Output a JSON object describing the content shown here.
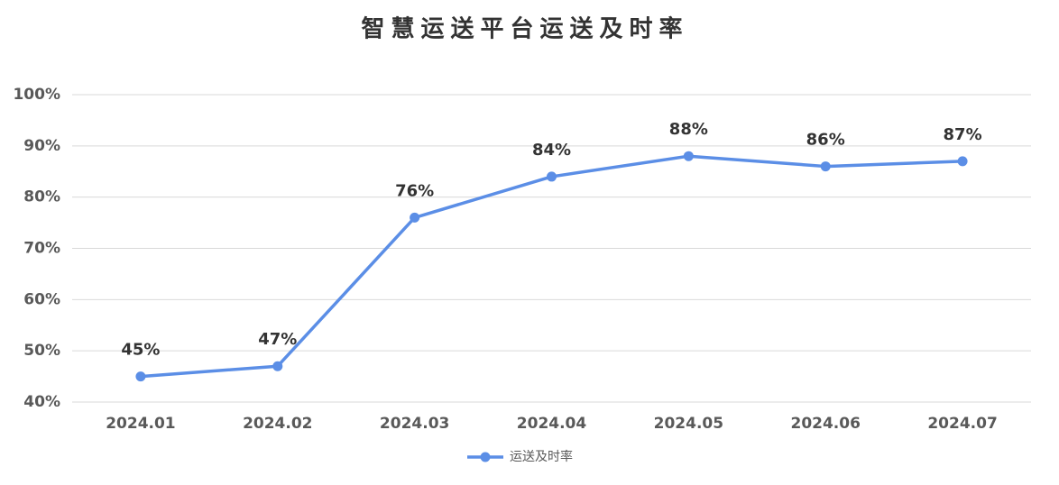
{
  "chart_data": {
    "type": "line",
    "title": "智慧运送平台运送及时率",
    "categories": [
      "2024.01",
      "2024.02",
      "2024.03",
      "2024.04",
      "2024.05",
      "2024.06",
      "2024.07"
    ],
    "series": [
      {
        "name": "运送及时率",
        "color": "#5b8ee6",
        "values": [
          45,
          47,
          76,
          84,
          88,
          86,
          87
        ],
        "value_labels": [
          "45%",
          "47%",
          "76%",
          "84%",
          "88%",
          "86%",
          "87%"
        ]
      }
    ],
    "ylim": [
      40,
      100
    ],
    "yticks": [
      {
        "value": 40,
        "label": "40%"
      },
      {
        "value": 50,
        "label": "50%"
      },
      {
        "value": 60,
        "label": "60%"
      },
      {
        "value": 70,
        "label": "70%"
      },
      {
        "value": 80,
        "label": "80%"
      },
      {
        "value": 90,
        "label": "90%"
      },
      {
        "value": 100,
        "label": "100%"
      }
    ],
    "grid": true,
    "legend": "bottom"
  }
}
